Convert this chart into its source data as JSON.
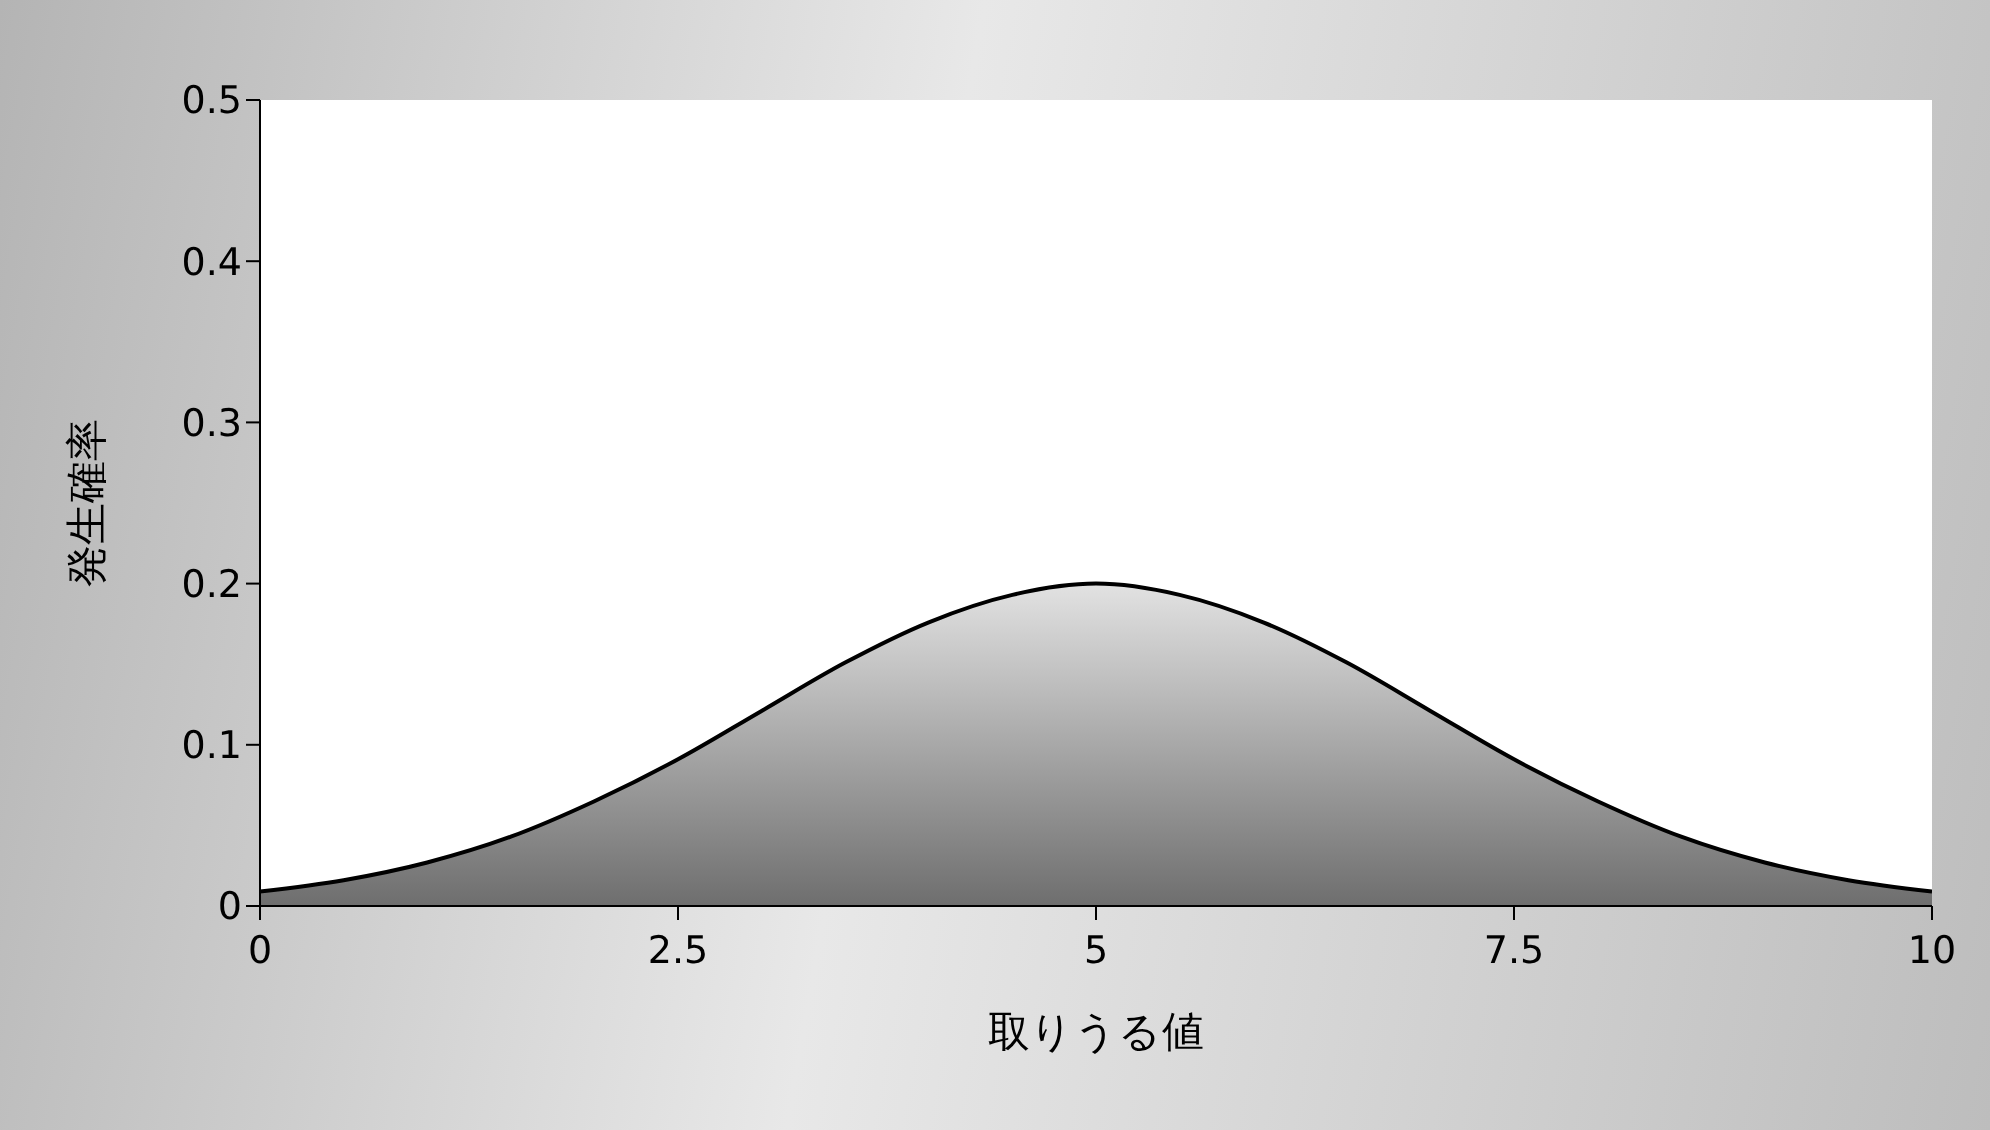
{
  "chart_data": {
    "type": "area",
    "xlabel": "取りうる値",
    "ylabel": "発生確率",
    "x": [
      0,
      0.5,
      1,
      1.5,
      2,
      2.5,
      3,
      3.5,
      4,
      4.5,
      5,
      5.5,
      6,
      6.5,
      7,
      7.5,
      8,
      8.5,
      9,
      9.5,
      10
    ],
    "series": [
      {
        "color": "#000000",
        "values": [
          0.009,
          0.016,
          0.027,
          0.043,
          0.065,
          0.091,
          0.121,
          0.151,
          0.176,
          0.193,
          0.2,
          0.193,
          0.176,
          0.151,
          0.121,
          0.091,
          0.065,
          0.043,
          0.027,
          0.016,
          0.009
        ]
      }
    ],
    "xlim": [
      0,
      10
    ],
    "xticks": [
      0,
      2.5,
      5,
      7.5,
      10
    ],
    "ylim": [
      0,
      0.5
    ],
    "yticks": [
      0,
      0.1,
      0.2,
      0.3,
      0.4,
      0.5
    ],
    "grid": false,
    "legend": false
  }
}
